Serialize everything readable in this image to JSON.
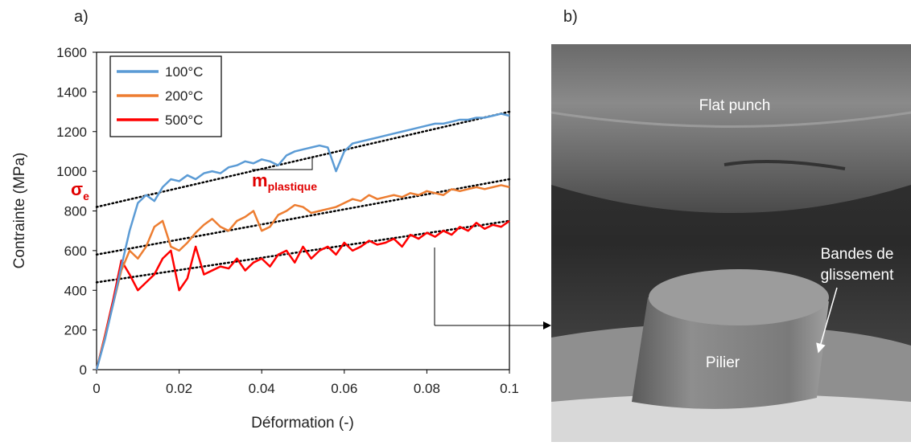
{
  "chart_data": {
    "type": "line",
    "panel_label": "a)",
    "x_label": "Déformation (-)",
    "y_label": "Contrainte (MPa)",
    "xlim": [
      0,
      0.1
    ],
    "ylim": [
      0,
      1600
    ],
    "xticks": [
      0,
      0.02,
      0.04,
      0.06,
      0.08,
      0.1
    ],
    "yticks": [
      0,
      200,
      400,
      600,
      800,
      1000,
      1200,
      1400,
      1600
    ],
    "legend": "upper left",
    "x": [
      0,
      0.002,
      0.004,
      0.006,
      0.008,
      0.01,
      0.012,
      0.014,
      0.016,
      0.018,
      0.02,
      0.022,
      0.024,
      0.026,
      0.028,
      0.03,
      0.032,
      0.034,
      0.036,
      0.038,
      0.04,
      0.042,
      0.044,
      0.046,
      0.048,
      0.05,
      0.052,
      0.054,
      0.056,
      0.058,
      0.06,
      0.062,
      0.064,
      0.066,
      0.068,
      0.07,
      0.072,
      0.074,
      0.076,
      0.078,
      0.08,
      0.082,
      0.084,
      0.086,
      0.088,
      0.09,
      0.092,
      0.094,
      0.096,
      0.098,
      0.1
    ],
    "series": [
      {
        "name": "100°C",
        "color": "#5b9bd5",
        "values": [
          0,
          150,
          330,
          520,
          700,
          840,
          880,
          850,
          920,
          960,
          950,
          980,
          960,
          990,
          1000,
          990,
          1020,
          1030,
          1050,
          1040,
          1060,
          1050,
          1030,
          1080,
          1100,
          1110,
          1120,
          1130,
          1120,
          1000,
          1100,
          1140,
          1150,
          1160,
          1170,
          1180,
          1190,
          1200,
          1210,
          1220,
          1230,
          1240,
          1240,
          1250,
          1260,
          1260,
          1270,
          1270,
          1280,
          1290,
          1280
        ]
      },
      {
        "name": "200°C",
        "color": "#ed7d31",
        "values": [
          0,
          160,
          330,
          500,
          600,
          560,
          620,
          720,
          750,
          620,
          600,
          640,
          690,
          730,
          760,
          720,
          700,
          750,
          770,
          800,
          700,
          720,
          780,
          800,
          830,
          820,
          790,
          800,
          810,
          820,
          840,
          860,
          850,
          880,
          860,
          870,
          880,
          870,
          890,
          880,
          900,
          890,
          880,
          910,
          900,
          910,
          920,
          910,
          920,
          930,
          920
        ]
      },
      {
        "name": "500°C",
        "color": "#ff0000",
        "values": [
          0,
          170,
          350,
          550,
          480,
          400,
          440,
          480,
          560,
          600,
          400,
          460,
          620,
          480,
          500,
          520,
          510,
          560,
          500,
          540,
          560,
          520,
          580,
          600,
          540,
          620,
          560,
          600,
          620,
          580,
          640,
          600,
          620,
          650,
          630,
          640,
          660,
          620,
          680,
          660,
          690,
          670,
          700,
          680,
          720,
          700,
          740,
          710,
          730,
          720,
          750
        ]
      }
    ],
    "trendlines": [
      {
        "x": [
          0,
          0.1
        ],
        "values": [
          820,
          1300
        ]
      },
      {
        "x": [
          0,
          0.1
        ],
        "values": [
          580,
          960
        ]
      },
      {
        "x": [
          0,
          0.1
        ],
        "values": [
          440,
          750
        ]
      }
    ],
    "annotations": [
      {
        "text": "σ",
        "subscript": "e"
      },
      {
        "text": "m",
        "subscript": "plastique"
      }
    ]
  },
  "panel_b": {
    "panel_label": "b)",
    "labels": {
      "punch": "Flat punch",
      "bands": [
        "Bandes de",
        "glissement"
      ],
      "pillar": "Pilier"
    }
  }
}
